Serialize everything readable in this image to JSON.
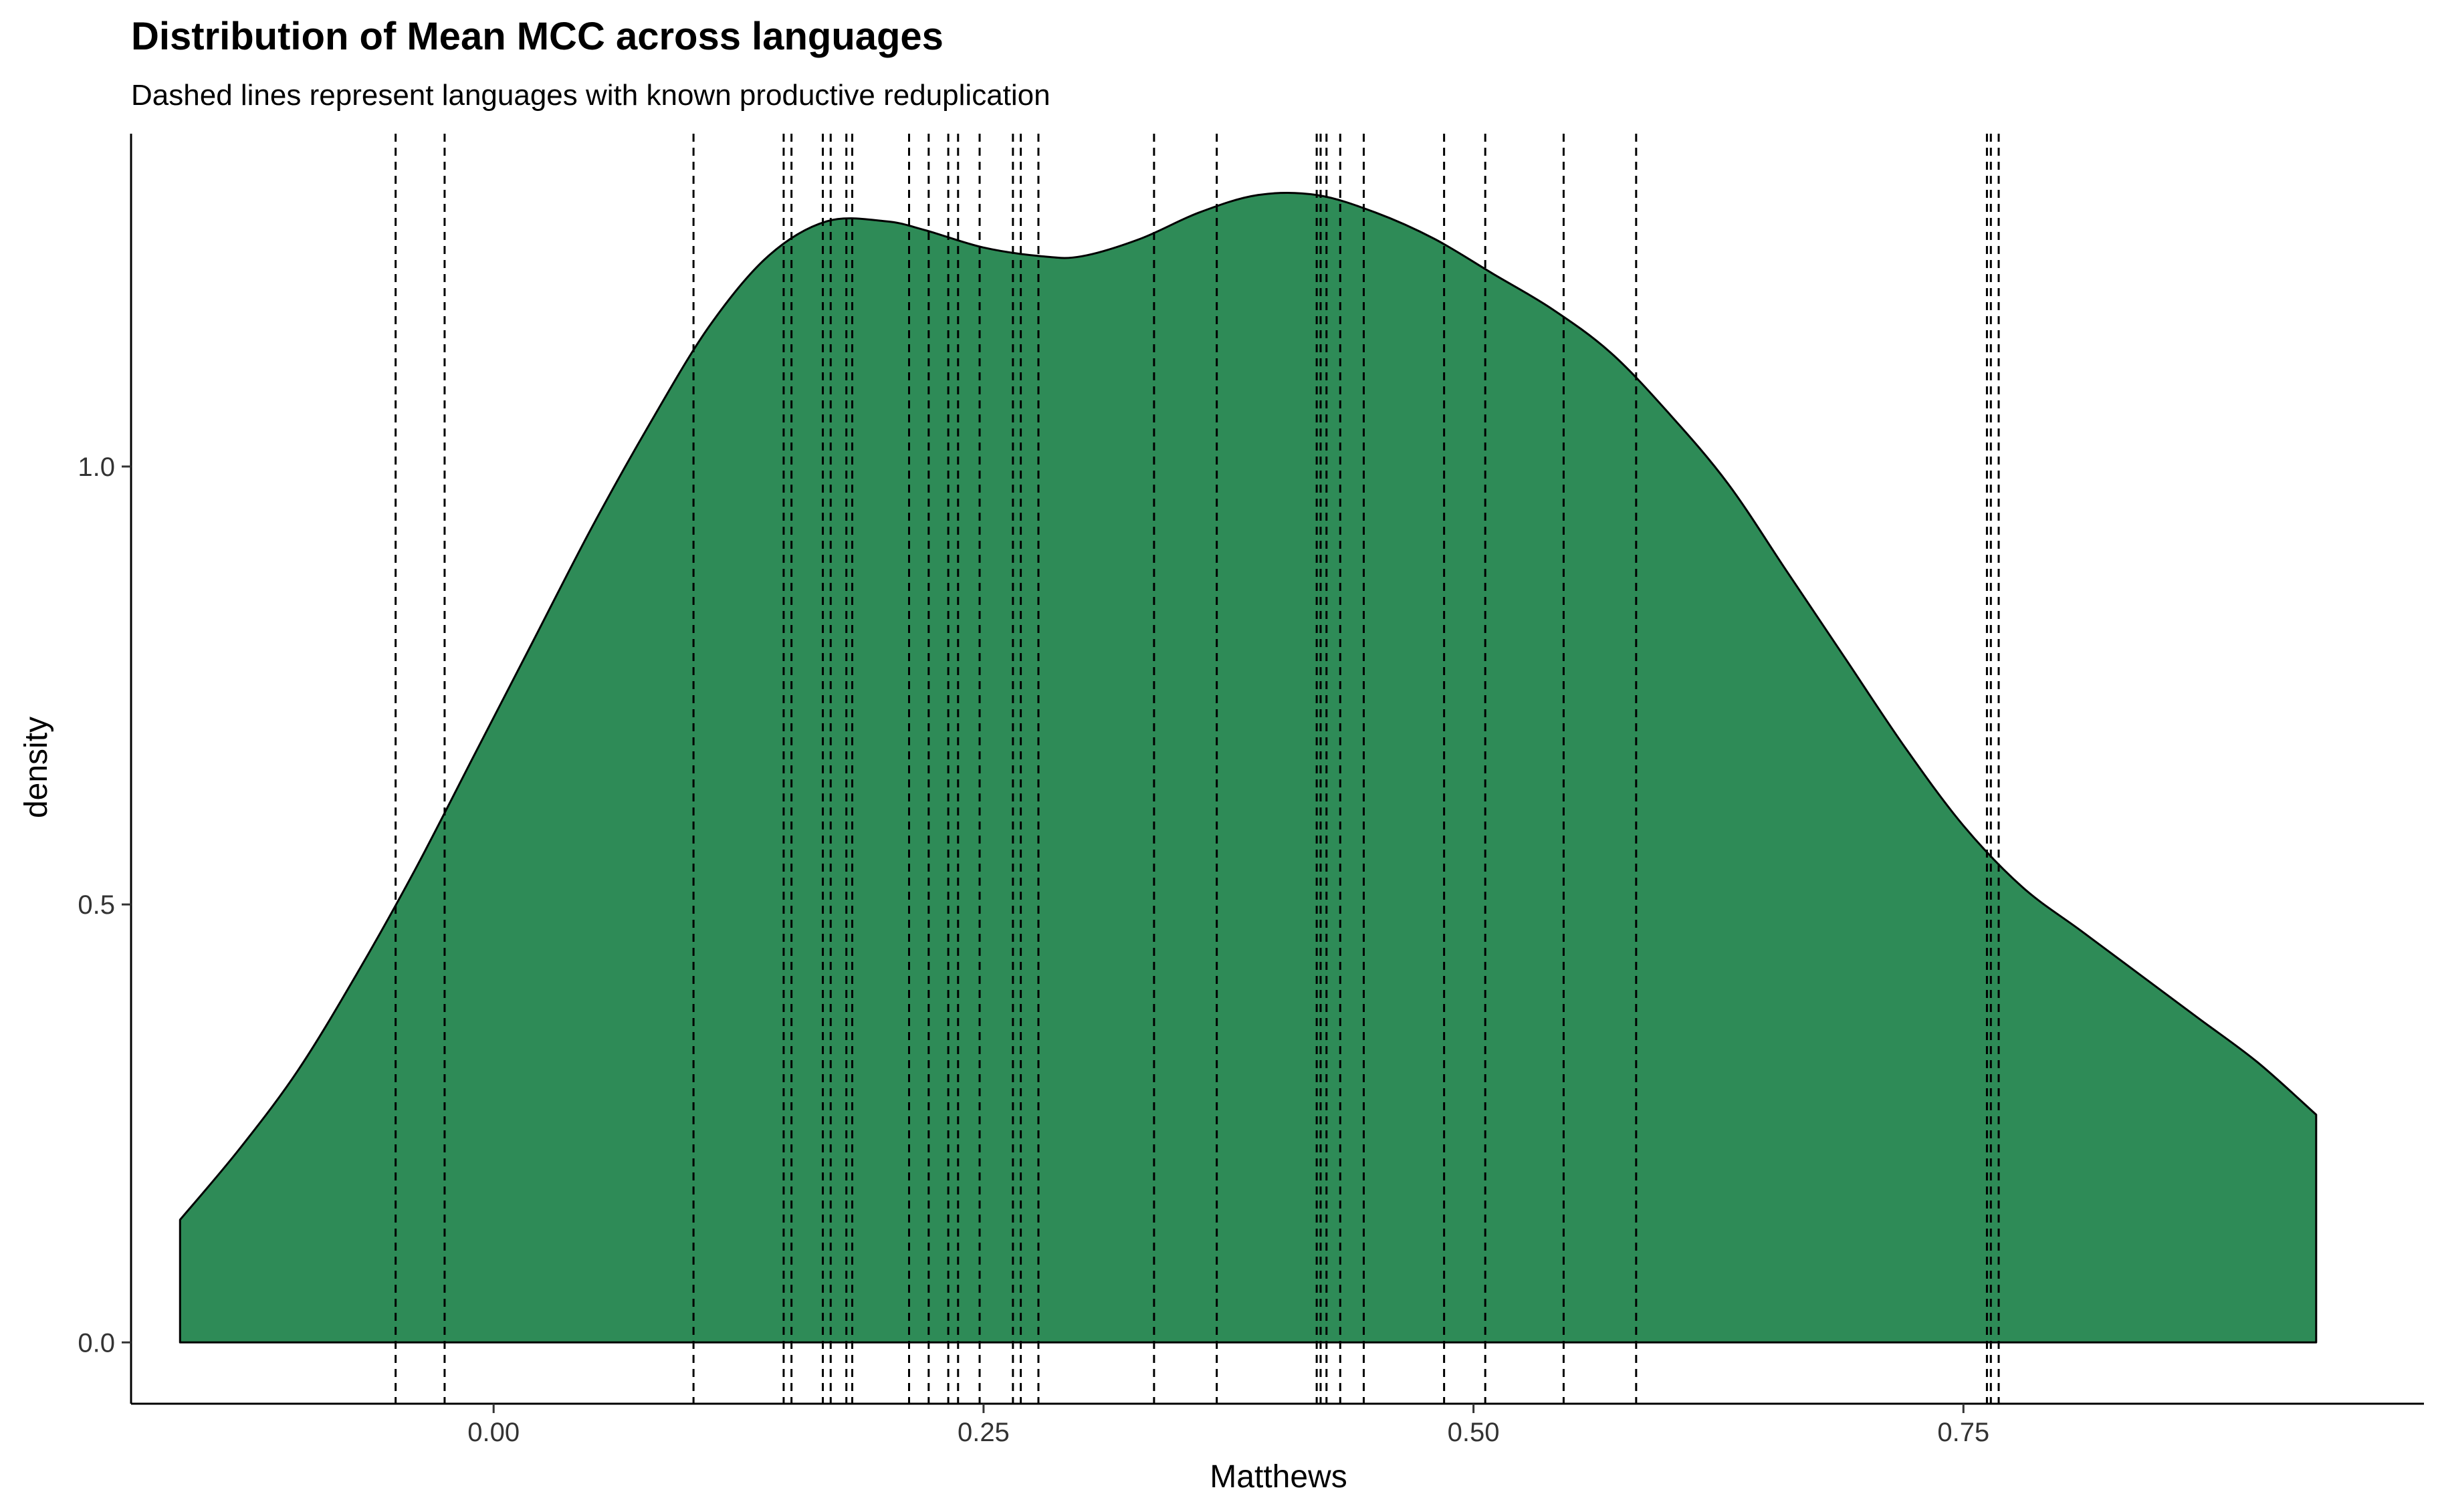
{
  "chart_data": {
    "type": "area",
    "title": "Distribution of Mean MCC across languages",
    "subtitle": "Dashed lines represent languages with known productive reduplication",
    "xlabel": "Matthews",
    "ylabel": "density",
    "xlim": [
      -0.185,
      0.985
    ],
    "ylim": [
      -0.07,
      1.38
    ],
    "x_ticks": [
      0.0,
      0.25,
      0.5,
      0.75
    ],
    "x_tick_labels": [
      "0.00",
      "0.25",
      "0.50",
      "0.75"
    ],
    "y_ticks": [
      0.0,
      0.5,
      1.0
    ],
    "y_tick_labels": [
      "0.0",
      "0.5",
      "1.0"
    ],
    "grid": false,
    "legend": "none",
    "fill_color": "#2E8B57",
    "outline_color": "#000000",
    "density_curve": {
      "x": [
        -0.16,
        -0.13,
        -0.1,
        -0.07,
        -0.04,
        -0.01,
        0.02,
        0.05,
        0.08,
        0.11,
        0.14,
        0.17,
        0.2,
        0.22,
        0.25,
        0.28,
        0.3,
        0.33,
        0.36,
        0.39,
        0.42,
        0.45,
        0.48,
        0.51,
        0.54,
        0.57,
        0.6,
        0.63,
        0.66,
        0.69,
        0.72,
        0.75,
        0.78,
        0.81,
        0.84,
        0.87,
        0.9,
        0.93
      ],
      "y": [
        0.14,
        0.22,
        0.31,
        0.42,
        0.54,
        0.67,
        0.8,
        0.93,
        1.05,
        1.16,
        1.24,
        1.28,
        1.28,
        1.27,
        1.25,
        1.24,
        1.24,
        1.26,
        1.29,
        1.31,
        1.31,
        1.29,
        1.26,
        1.22,
        1.18,
        1.13,
        1.06,
        0.98,
        0.88,
        0.78,
        0.68,
        0.59,
        0.52,
        0.47,
        0.42,
        0.37,
        0.32,
        0.26
      ]
    },
    "reference_lines": [
      -0.05,
      -0.025,
      0.102,
      0.148,
      0.152,
      0.168,
      0.172,
      0.18,
      0.183,
      0.212,
      0.222,
      0.232,
      0.237,
      0.248,
      0.265,
      0.269,
      0.278,
      0.337,
      0.369,
      0.42,
      0.422,
      0.425,
      0.432,
      0.444,
      0.485,
      0.506,
      0.546,
      0.583,
      0.762,
      0.764,
      0.768
    ]
  }
}
